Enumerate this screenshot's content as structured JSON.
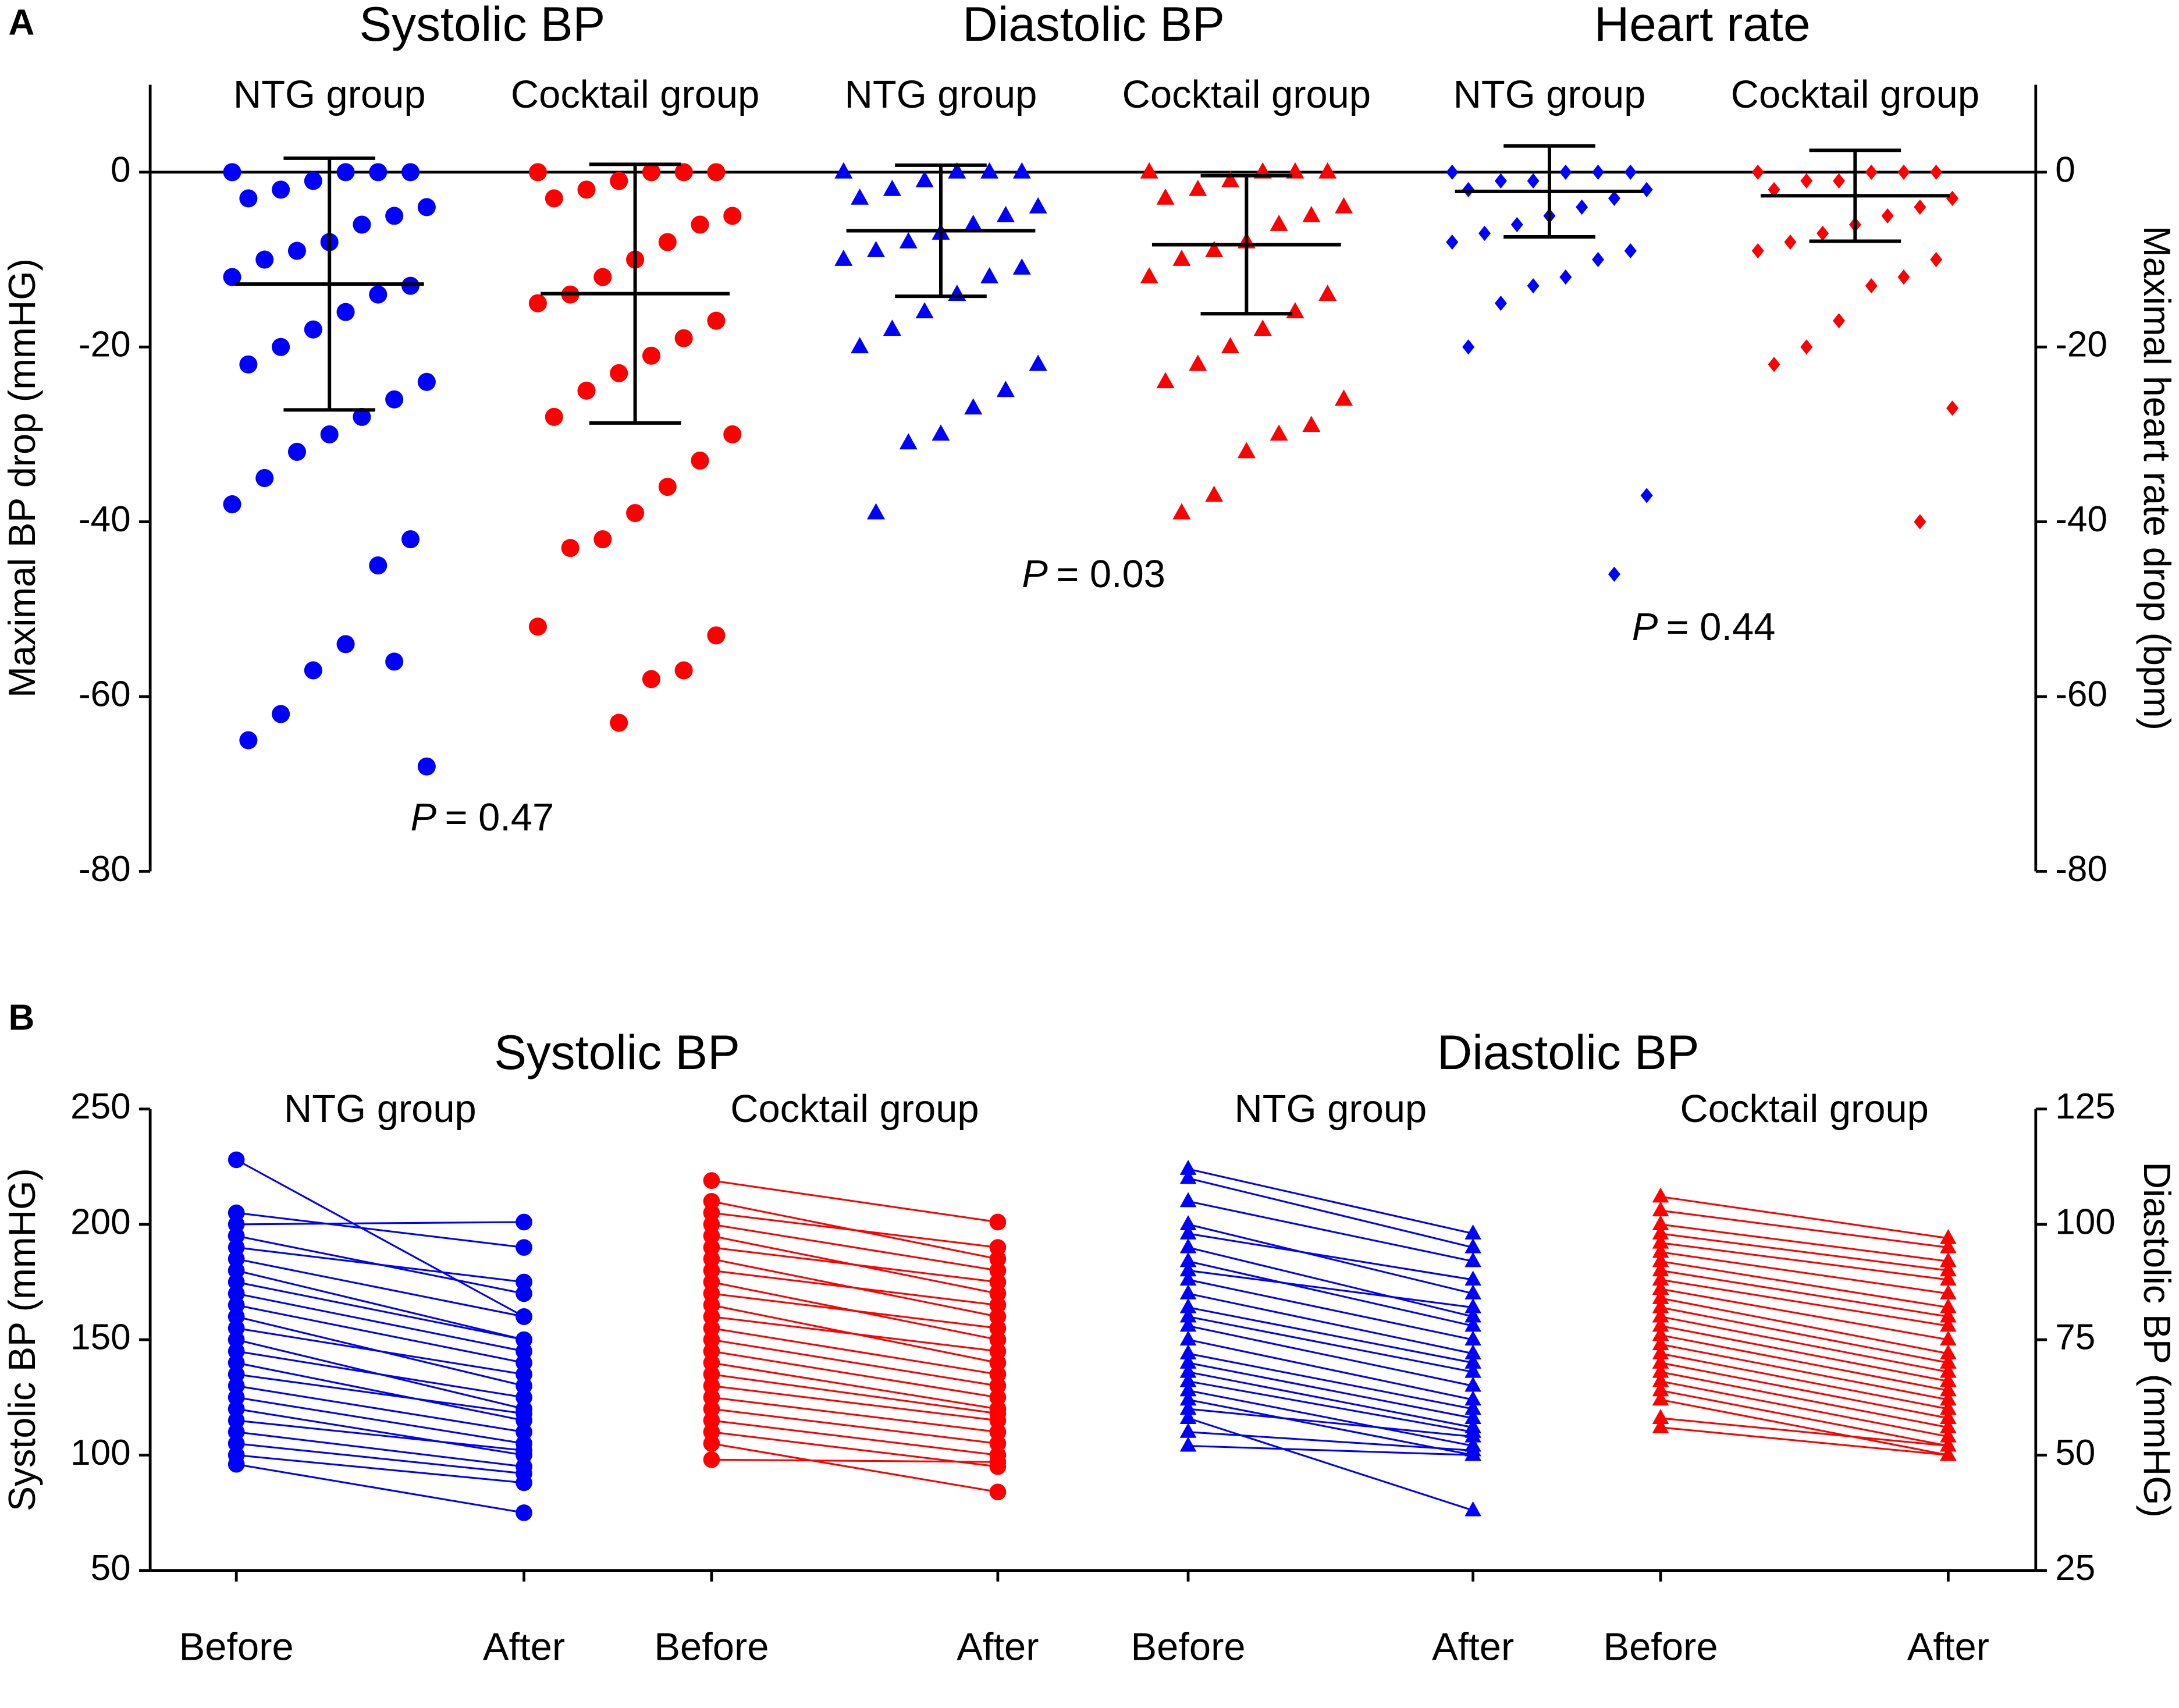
{
  "chart_data": [
    {
      "type": "strip",
      "panel_label": "A",
      "ylabel": "Maximal BP drop (mmHG)",
      "y2label": "Maximal heart rate drop (bpm)",
      "ylim": [
        -80,
        10
      ],
      "yticks": [
        -80,
        -60,
        -40,
        -20,
        0
      ],
      "y2lim": [
        -80,
        10
      ],
      "y2ticks": [
        -80,
        -60,
        -40,
        -20,
        0
      ],
      "panels": [
        {
          "title": "Systolic BP",
          "annotation": {
            "italic": "P",
            "rest": "= 0.47"
          },
          "groups": [
            {
              "name": "NTG group",
              "color": "#0000ff",
              "marker": "circle",
              "axis": "y",
              "mean": -12.8,
              "sd": 14.4,
              "values": [
                0,
                0,
                0,
                0,
                -1,
                -2,
                -3,
                -4,
                -5,
                -6,
                -8,
                -9,
                -10,
                -12,
                -13,
                -14,
                -16,
                -18,
                -20,
                -22,
                -24,
                -26,
                -28,
                -30,
                -32,
                -35,
                -38,
                -42,
                -45,
                -54,
                -57,
                -62,
                -65,
                -68,
                -56
              ]
            },
            {
              "name": "Cocktail group",
              "color": "#ff0000",
              "marker": "circle",
              "axis": "y",
              "mean": -13.9,
              "sd": 14.8,
              "values": [
                0,
                0,
                0,
                0,
                -1,
                -2,
                -3,
                -5,
                -6,
                -8,
                -10,
                -12,
                -14,
                -15,
                -17,
                -19,
                -21,
                -23,
                -25,
                -28,
                -30,
                -33,
                -36,
                -39,
                -42,
                -43,
                -52,
                -53,
                -57,
                -58,
                -63
              ]
            }
          ]
        },
        {
          "title": "Diastolic BP",
          "annotation": {
            "italic": "P",
            "rest": "= 0.03"
          },
          "groups": [
            {
              "name": "NTG group",
              "color": "#0000ff",
              "marker": "triangle",
              "axis": "y",
              "mean": -6.7,
              "sd": 7.5,
              "values": [
                0,
                0,
                0,
                0,
                -1,
                -2,
                -3,
                -4,
                -5,
                -6,
                -7,
                -8,
                -9,
                -10,
                -11,
                -12,
                -14,
                -16,
                -18,
                -20,
                -22,
                -25,
                -27,
                -30,
                -31,
                -39
              ]
            },
            {
              "name": "Cocktail group",
              "color": "#ff0000",
              "marker": "triangle",
              "axis": "y",
              "mean": -8.3,
              "sd": 7.9,
              "values": [
                0,
                0,
                0,
                0,
                -1,
                -2,
                -3,
                -4,
                -5,
                -6,
                -8,
                -9,
                -10,
                -12,
                -14,
                -16,
                -18,
                -20,
                -22,
                -24,
                -26,
                -29,
                -30,
                -32,
                -37,
                -39
              ]
            }
          ]
        },
        {
          "title": "Heart rate",
          "annotation": {
            "italic": "P",
            "rest": "= 0.44"
          },
          "groups": [
            {
              "name": "NTG group",
              "color": "#0000ff",
              "marker": "diamond",
              "axis": "y2",
              "mean": -2.2,
              "sd": 5.2,
              "values": [
                0,
                0,
                0,
                0,
                -1,
                -1,
                -2,
                -2,
                -3,
                -4,
                -5,
                -6,
                -7,
                -8,
                -9,
                -10,
                -12,
                -13,
                -15,
                -20,
                -37,
                -46
              ]
            },
            {
              "name": "Cocktail group",
              "color": "#ff0000",
              "marker": "diamond",
              "axis": "y2",
              "mean": -2.7,
              "sd": 5.2,
              "values": [
                0,
                0,
                0,
                0,
                -1,
                -1,
                -2,
                -3,
                -4,
                -5,
                -6,
                -7,
                -8,
                -9,
                -10,
                -12,
                -13,
                -17,
                -20,
                -22,
                -27,
                -40
              ]
            }
          ]
        }
      ]
    },
    {
      "type": "paired-line",
      "panel_label": "B",
      "ylabel": "Systolic BP (mmHG)",
      "y2label": "Diastolic BP (mmHG)",
      "ylim": [
        50,
        250
      ],
      "yticks": [
        50,
        100,
        150,
        200,
        250
      ],
      "y2lim": [
        25,
        125
      ],
      "y2ticks": [
        25,
        50,
        75,
        100,
        125
      ],
      "panels": [
        {
          "title": "Systolic BP",
          "axis": "y",
          "groups": [
            {
              "name": "NTG group",
              "color": "#0000ff",
              "marker": "circle",
              "categories": [
                "Before",
                "After"
              ],
              "before": [
                228,
                205,
                200,
                195,
                190,
                185,
                180,
                175,
                170,
                165,
                160,
                155,
                150,
                145,
                140,
                135,
                130,
                125,
                120,
                115,
                110,
                105,
                100,
                96
              ],
              "after": [
                160,
                190,
                201,
                170,
                175,
                160,
                150,
                150,
                145,
                140,
                130,
                135,
                120,
                125,
                115,
                118,
                110,
                105,
                100,
                102,
                95,
                92,
                88,
                75
              ]
            },
            {
              "name": "Cocktail group",
              "color": "#ff0000",
              "marker": "circle",
              "categories": [
                "Before",
                "After"
              ],
              "before": [
                219,
                210,
                205,
                200,
                195,
                190,
                185,
                180,
                175,
                170,
                165,
                160,
                155,
                150,
                145,
                140,
                135,
                130,
                125,
                120,
                115,
                110,
                105,
                98
              ],
              "after": [
                201,
                185,
                190,
                180,
                170,
                175,
                160,
                165,
                150,
                155,
                140,
                145,
                135,
                130,
                125,
                120,
                118,
                115,
                110,
                105,
                100,
                95,
                84,
                97
              ]
            }
          ]
        },
        {
          "title": "Diastolic BP",
          "axis": "y2",
          "groups": [
            {
              "name": "NTG group",
              "color": "#0000ff",
              "marker": "triangle",
              "categories": [
                "Before",
                "After"
              ],
              "before": [
                112,
                110,
                105,
                100,
                98,
                95,
                92,
                90,
                88,
                85,
                82,
                80,
                78,
                75,
                72,
                70,
                68,
                66,
                64,
                62,
                60,
                58,
                55,
                52
              ],
              "after": [
                98,
                95,
                92,
                85,
                88,
                80,
                78,
                82,
                75,
                72,
                70,
                68,
                65,
                62,
                60,
                58,
                56,
                55,
                52,
                50,
                54,
                38,
                51,
                50
              ]
            },
            {
              "name": "Cocktail group",
              "color": "#ff0000",
              "marker": "triangle",
              "categories": [
                "Before",
                "After"
              ],
              "before": [
                106,
                103,
                100,
                98,
                96,
                94,
                92,
                90,
                88,
                86,
                84,
                82,
                80,
                78,
                76,
                74,
                72,
                70,
                68,
                66,
                64,
                62,
                58,
                56
              ],
              "after": [
                97,
                95,
                92,
                90,
                88,
                85,
                82,
                80,
                78,
                75,
                72,
                70,
                68,
                66,
                64,
                62,
                60,
                58,
                56,
                54,
                52,
                50,
                52,
                50
              ]
            }
          ]
        }
      ]
    }
  ]
}
